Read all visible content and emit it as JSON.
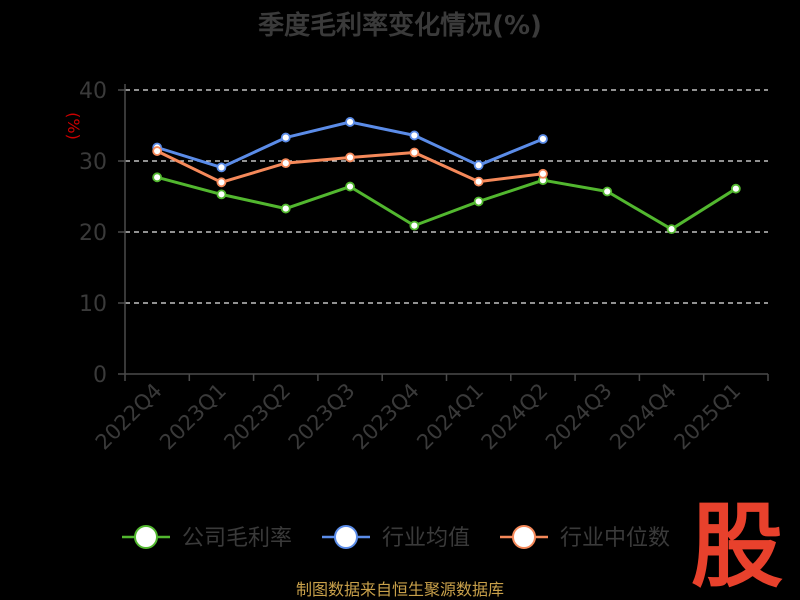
{
  "chart_data": {
    "type": "line",
    "title": "季度毛利率变化情况(%)",
    "ylabel": "(%)",
    "xlabel": "",
    "ylim": [
      0,
      40
    ],
    "yticks": [
      0,
      10,
      20,
      30,
      40
    ],
    "grid": true,
    "legend_position": "bottom",
    "categories": [
      "2022Q4",
      "2023Q1",
      "2023Q2",
      "2023Q3",
      "2023Q4",
      "2024Q1",
      "2024Q2",
      "2024Q3",
      "2024Q4",
      "2025Q1"
    ],
    "series": [
      {
        "name": "公司毛利率",
        "color": "#52b72f",
        "values": [
          27.7,
          25.3,
          23.3,
          26.4,
          20.9,
          24.3,
          27.3,
          25.7,
          20.4,
          26.1
        ]
      },
      {
        "name": "行业均值",
        "color": "#5b8ce8",
        "values": [
          31.9,
          29.1,
          33.3,
          35.5,
          33.6,
          29.4,
          33.1,
          null,
          null,
          null
        ]
      },
      {
        "name": "行业中位数",
        "color": "#f5895a",
        "values": [
          31.4,
          27.0,
          29.7,
          30.5,
          31.2,
          27.1,
          28.2,
          null,
          null,
          null
        ]
      }
    ]
  },
  "footer": {
    "source": "制图数据来自恒生聚源数据库"
  },
  "logo": {
    "text": "股"
  }
}
